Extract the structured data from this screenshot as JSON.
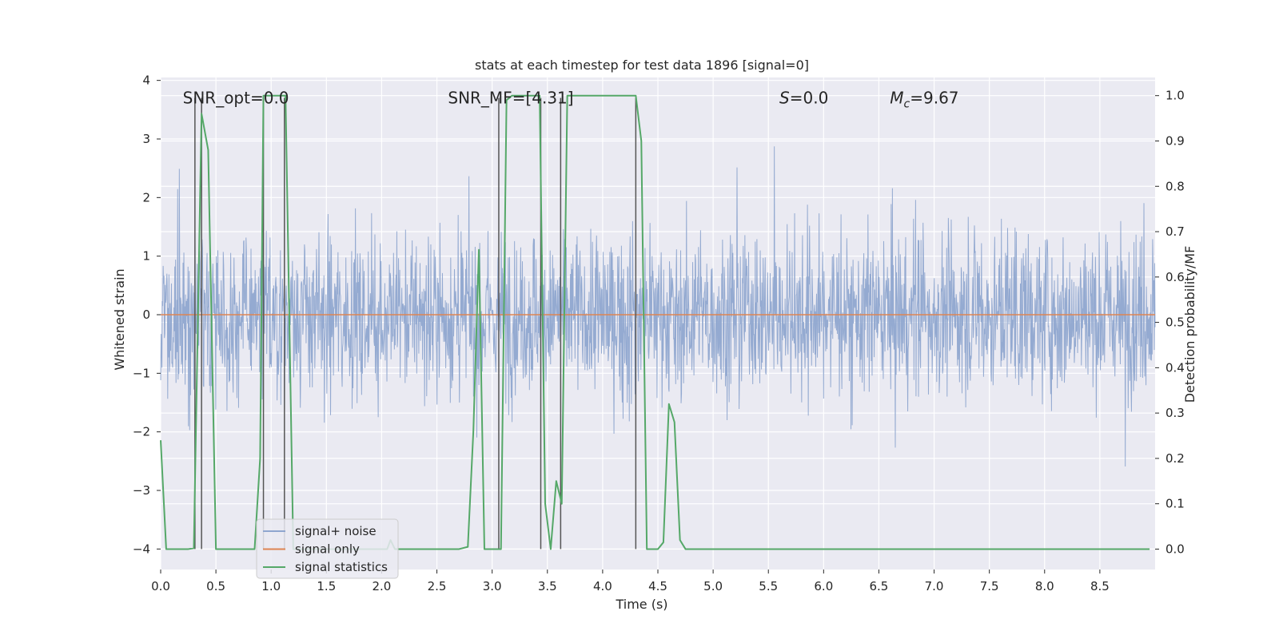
{
  "chart_data": {
    "type": "line",
    "title": "stats at each timestep for test data 1896 [signal=0]",
    "xlabel": "Time (s)",
    "ylabel_left": "Whitened strain",
    "ylabel_right": "Detection probability/MF",
    "xlim": [
      0.0,
      9.0
    ],
    "ylim_left": [
      -4.35,
      4.05
    ],
    "ylim_right": [
      -0.045,
      1.04
    ],
    "x_ticks": [
      0.0,
      0.5,
      1.0,
      1.5,
      2.0,
      2.5,
      3.0,
      3.5,
      4.0,
      4.5,
      5.0,
      5.5,
      6.0,
      6.5,
      7.0,
      7.5,
      8.0,
      8.5
    ],
    "x_tick_labels": [
      "0.0",
      "0.5",
      "1.0",
      "1.5",
      "2.0",
      "2.5",
      "3.0",
      "3.5",
      "4.0",
      "4.5",
      "5.0",
      "5.5",
      "6.0",
      "6.5",
      "7.0",
      "7.5",
      "8.0",
      "8.5"
    ],
    "y_left_ticks": [
      4,
      3,
      2,
      1,
      0,
      -1,
      -2,
      -3,
      -4
    ],
    "y_left_tick_labels": [
      "4",
      "3",
      "2",
      "1",
      "0",
      "−1",
      "−2",
      "−3",
      "−4"
    ],
    "y_right_ticks": [
      1.0,
      0.9,
      0.8,
      0.7,
      0.6,
      0.5,
      0.4,
      0.3,
      0.2,
      0.1,
      0.0
    ],
    "y_right_tick_labels": [
      "1.0",
      "0.9",
      "0.8",
      "0.7",
      "0.6",
      "0.5",
      "0.4",
      "0.3",
      "0.2",
      "0.1",
      "0.0"
    ],
    "annotations": [
      {
        "name": "snr-opt",
        "text": "SNR_opt=0.0",
        "x": 0.2
      },
      {
        "name": "snr-mf",
        "text": "SNR_MF=[4.31]",
        "x": 2.6
      },
      {
        "name": "s-value",
        "text": "S=0.0",
        "x": 5.6
      },
      {
        "name": "mc-value",
        "text": "M_c=9.67",
        "x": 6.6
      }
    ],
    "annotation_y": 3.7,
    "vertical_lines": [
      0.31,
      0.37,
      0.93,
      1.12,
      3.06,
      3.44,
      3.62,
      4.3
    ],
    "vertical_lines_ylim": [
      -4.0,
      3.7
    ],
    "series": [
      {
        "name": "signal+ noise",
        "axis": "left",
        "color": "#8fa6cf",
        "description": "whitened noise time series, amplitude mostly within ±2, spikes to about ±3.6",
        "envelope_typical": 2.0,
        "envelope_max": 3.6
      },
      {
        "name": "signal only",
        "axis": "left",
        "color": "#dd8452",
        "x": [
          0.0,
          9.0
        ],
        "y": [
          0.0,
          0.0
        ]
      },
      {
        "name": "signal statistics",
        "axis": "right",
        "color": "#55a868",
        "x": [
          0.0,
          0.05,
          0.1,
          0.15,
          0.2,
          0.25,
          0.3,
          0.37,
          0.43,
          0.5,
          0.55,
          0.6,
          0.65,
          0.7,
          0.75,
          0.8,
          0.85,
          0.9,
          0.93,
          0.98,
          1.03,
          1.08,
          1.13,
          1.2,
          1.25,
          1.3,
          1.35,
          1.4,
          1.45,
          1.5,
          1.55,
          1.6,
          1.65,
          1.7,
          1.75,
          1.8,
          1.85,
          1.9,
          1.95,
          2.0,
          2.05,
          2.08,
          2.12,
          2.2,
          2.3,
          2.4,
          2.5,
          2.6,
          2.7,
          2.78,
          2.83,
          2.88,
          2.93,
          2.98,
          3.03,
          3.08,
          3.13,
          3.18,
          3.23,
          3.28,
          3.33,
          3.38,
          3.43,
          3.48,
          3.53,
          3.58,
          3.63,
          3.68,
          3.73,
          3.8,
          3.9,
          4.0,
          4.1,
          4.2,
          4.3,
          4.35,
          4.4,
          4.45,
          4.5,
          4.55,
          4.6,
          4.65,
          4.7,
          4.75,
          4.8,
          4.9,
          5.0,
          5.5,
          6.0,
          6.5,
          7.0,
          7.5,
          8.0,
          8.5,
          8.95
        ],
        "y": [
          0.24,
          0.0,
          0.0,
          0.0,
          0.0,
          0.0,
          0.002,
          0.96,
          0.88,
          0.0,
          0.0,
          0.0,
          0.0,
          0.0,
          0.0,
          0.0,
          0.0,
          0.2,
          1.0,
          1.0,
          1.0,
          1.0,
          1.0,
          0.0,
          0.0,
          0.0,
          0.0,
          0.0,
          0.0,
          0.0,
          0.0,
          0.0,
          0.0,
          0.0,
          0.0,
          0.0,
          0.0,
          0.0,
          0.0,
          0.0,
          0.0,
          0.02,
          0.0,
          0.0,
          0.0,
          0.0,
          0.0,
          0.0,
          0.0,
          0.005,
          0.26,
          0.66,
          0.0,
          0.0,
          0.0,
          0.0,
          0.99,
          1.0,
          1.0,
          1.0,
          1.0,
          1.0,
          1.0,
          0.1,
          0.0,
          0.15,
          0.1,
          1.0,
          1.0,
          1.0,
          1.0,
          1.0,
          1.0,
          1.0,
          1.0,
          0.9,
          0.0,
          0.0,
          0.0,
          0.015,
          0.32,
          0.28,
          0.02,
          0.0,
          0.0,
          0.0,
          0.0,
          0.0,
          0.0,
          0.0,
          0.0,
          0.0,
          0.0,
          0.0,
          0.0
        ]
      }
    ],
    "legend": {
      "placement": "lower-left",
      "entries": [
        {
          "label": "signal+ noise",
          "color": "#8fa6cf"
        },
        {
          "label": "signal only",
          "color": "#dd8452"
        },
        {
          "label": "signal statistics",
          "color": "#55a868"
        }
      ]
    },
    "style": {
      "axes_background": "#eaeaf2",
      "grid_color": "#ffffff",
      "vline_color": "#555555"
    }
  }
}
